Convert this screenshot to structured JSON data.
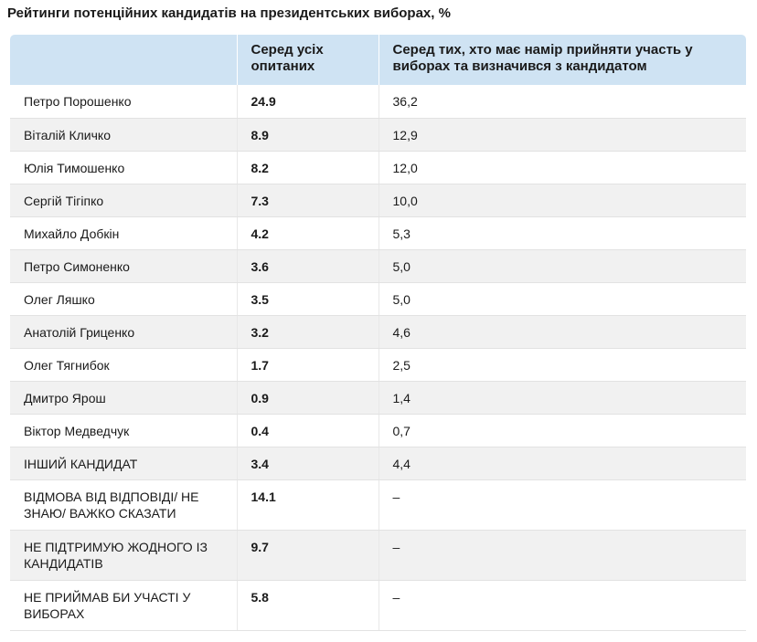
{
  "title": "Рейтинги потенційних кандидатів на президентських виборах, %",
  "chart_data": {
    "type": "table",
    "title": "Рейтинги потенційних кандидатів на президентських виборах, %",
    "columns": [
      "",
      "Серед усіх опитаних",
      "Серед тих, хто має намір прийняти участь у виборах та визначився з кандидатом"
    ],
    "rows": [
      {
        "name": "Петро Порошенко",
        "all": "24.9",
        "decided": "36,2"
      },
      {
        "name": "Віталій Кличко",
        "all": "8.9",
        "decided": "12,9"
      },
      {
        "name": "Юлія Тимошенко",
        "all": "8.2",
        "decided": "12,0"
      },
      {
        "name": "Сергій Тігіпко",
        "all": "7.3",
        "decided": "10,0"
      },
      {
        "name": "Михайло Добкін",
        "all": "4.2",
        "decided": "5,3"
      },
      {
        "name": "Петро Симоненко",
        "all": "3.6",
        "decided": "5,0"
      },
      {
        "name": "Олег Ляшко",
        "all": "3.5",
        "decided": "5,0"
      },
      {
        "name": "Анатолій Гриценко",
        "all": "3.2",
        "decided": "4,6"
      },
      {
        "name": "Олег Тягнибок",
        "all": "1.7",
        "decided": "2,5"
      },
      {
        "name": "Дмитро Ярош",
        "all": "0.9",
        "decided": "1,4"
      },
      {
        "name": "Віктор Медведчук",
        "all": "0.4",
        "decided": "0,7"
      },
      {
        "name": "ІНШИЙ КАНДИДАТ",
        "all": "3.4",
        "decided": "4,4"
      },
      {
        "name": "ВІДМОВА ВІД ВІДПОВІДІ/ НЕ ЗНАЮ/ ВАЖКО СКАЗАТИ",
        "all": "14.1",
        "decided": "–"
      },
      {
        "name": "НЕ ПІДТРИМУЮ ЖОДНОГО ІЗ КАНДИДАТІВ",
        "all": "9.7",
        "decided": "–"
      },
      {
        "name": "НЕ ПРИЙМАВ БИ УЧАСТІ У ВИБОРАХ",
        "all": "5.8",
        "decided": "–"
      }
    ]
  }
}
